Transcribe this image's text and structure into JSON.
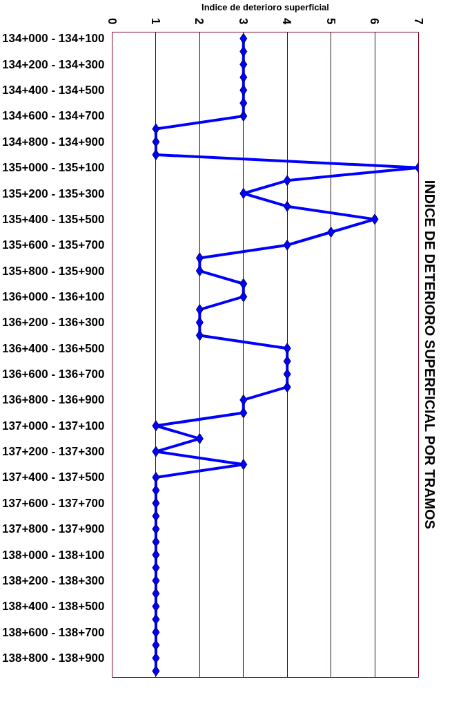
{
  "chart_data": {
    "type": "line",
    "orientation": "horizontal",
    "title": "INDICE DE DETERIORO SUPERFICIAL POR TRAMOS",
    "xlabel": "Indice de deterioro superficial",
    "categories": [
      "134+000 - 134+100",
      null,
      "134+200 - 134+300",
      null,
      "134+400 - 134+500",
      null,
      "134+600 - 134+700",
      null,
      "134+800 - 134+900",
      null,
      "135+000 - 135+100",
      null,
      "135+200 - 135+300",
      null,
      "135+400 - 135+500",
      null,
      "135+600 - 135+700",
      null,
      "135+800 - 135+900",
      null,
      "136+000 - 136+100",
      null,
      "136+200 - 136+300",
      null,
      "136+400 - 136+500",
      null,
      "136+600 - 136+700",
      null,
      "136+800 - 136+900",
      null,
      "137+000 - 137+100",
      null,
      "137+200 - 137+300",
      null,
      "137+400 - 137+500",
      null,
      "137+600 - 137+700",
      null,
      "137+800 - 137+900",
      null,
      "138+000 - 138+100",
      null,
      "138+200 - 138+300",
      null,
      "138+400 - 138+500",
      null,
      "138+600 - 138+700",
      null,
      "138+800 - 138+900",
      null
    ],
    "series": [
      {
        "color": "#0000ff",
        "values": [
          3,
          3,
          3,
          3,
          3,
          3,
          3,
          1,
          1,
          1,
          7,
          4,
          3,
          4,
          6,
          5,
          4,
          2,
          2,
          3,
          3,
          2,
          2,
          2,
          4,
          4,
          4,
          4,
          3,
          3,
          1,
          2,
          1,
          3,
          1,
          1,
          1,
          1,
          1,
          1,
          1,
          1,
          1,
          1,
          1,
          1,
          1,
          1,
          1,
          1
        ]
      }
    ],
    "xlim": [
      0,
      7
    ],
    "xticks": [
      0,
      1,
      2,
      3,
      4,
      5,
      6,
      7
    ],
    "marker": "diamond",
    "line_style": "solid",
    "grid": "x"
  }
}
